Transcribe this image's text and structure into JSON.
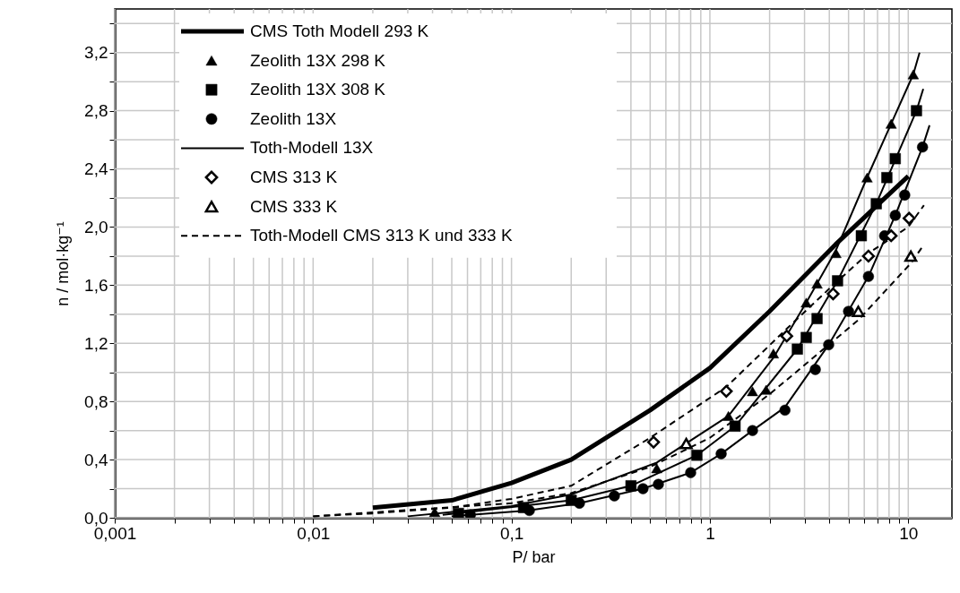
{
  "chart_data": {
    "type": "scatter",
    "xlabel": "P/ bar",
    "ylabel": "n / mol·kg⁻¹",
    "log": "x",
    "grid": true,
    "legend": "top left",
    "xlim": [
      0.001,
      16.6
    ],
    "ylim": [
      0,
      3.5
    ],
    "xticks": [
      {
        "value": 0.001,
        "label": "0,001"
      },
      {
        "value": 0.002,
        "label": null
      },
      {
        "value": 0.003,
        "label": null
      },
      {
        "value": 0.004,
        "label": null
      },
      {
        "value": 0.005,
        "label": null
      },
      {
        "value": 0.006,
        "label": null
      },
      {
        "value": 0.007,
        "label": null
      },
      {
        "value": 0.008,
        "label": null
      },
      {
        "value": 0.009,
        "label": null
      },
      {
        "value": 0.01,
        "label": "0,01"
      },
      {
        "value": 0.02,
        "label": null
      },
      {
        "value": 0.03,
        "label": null
      },
      {
        "value": 0.04,
        "label": null
      },
      {
        "value": 0.05,
        "label": null
      },
      {
        "value": 0.06,
        "label": null
      },
      {
        "value": 0.07,
        "label": null
      },
      {
        "value": 0.08,
        "label": null
      },
      {
        "value": 0.09,
        "label": null
      },
      {
        "value": 0.1,
        "label": "0,1"
      },
      {
        "value": 0.2,
        "label": null
      },
      {
        "value": 0.3,
        "label": null
      },
      {
        "value": 0.4,
        "label": null
      },
      {
        "value": 0.5,
        "label": null
      },
      {
        "value": 0.6,
        "label": null
      },
      {
        "value": 0.7,
        "label": null
      },
      {
        "value": 0.8,
        "label": null
      },
      {
        "value": 0.9,
        "label": null
      },
      1,
      {
        "value": 2,
        "label": null
      },
      {
        "value": 3,
        "label": null
      },
      {
        "value": 4,
        "label": null
      },
      {
        "value": 5,
        "label": null
      },
      {
        "value": 6,
        "label": null
      },
      {
        "value": 7,
        "label": null
      },
      {
        "value": 8,
        "label": null
      },
      {
        "value": 9,
        "label": null
      },
      10
    ],
    "yticks": [
      {
        "value": 0,
        "label": "0,0"
      },
      {
        "value": 0.2,
        "label": null
      },
      {
        "value": 0.4,
        "label": "0,4"
      },
      {
        "value": 0.6,
        "label": null
      },
      {
        "value": 0.8,
        "label": "0,8"
      },
      {
        "value": 1.0,
        "label": null
      },
      {
        "value": 1.2,
        "label": "1,2"
      },
      {
        "value": 1.4,
        "label": null
      },
      {
        "value": 1.6,
        "label": "1,6"
      },
      {
        "value": 1.8,
        "label": null
      },
      {
        "value": 2.0,
        "label": "2,0"
      },
      {
        "value": 2.2,
        "label": null
      },
      {
        "value": 2.4,
        "label": "2,4"
      },
      {
        "value": 2.6,
        "label": null
      },
      {
        "value": 2.8,
        "label": "2,8"
      },
      {
        "value": 3.0,
        "label": null
      },
      {
        "value": 3.2,
        "label": "3,2"
      },
      {
        "value": 3.4,
        "label": null
      }
    ],
    "series": [
      {
        "name": "CMS Toth Modell 293 K",
        "type": "line",
        "color": "#000000",
        "line_style": "solid",
        "x": [
          0.02,
          0.05,
          0.1,
          0.2,
          0.5,
          1,
          2,
          4.3,
          10
        ],
        "values": [
          0.07,
          0.12,
          0.24,
          0.4,
          0.74,
          1.03,
          1.42,
          1.88,
          2.35
        ]
      },
      {
        "name": "Zeolith 13X 298 K",
        "color": "#000000",
        "marker": "triangle",
        "x": [
          0.041,
          0.54,
          1.24,
          1.64,
          1.92,
          2.09,
          3.06,
          3.47,
          4.32,
          6.2,
          8.2,
          10.6
        ],
        "values": [
          0.04,
          0.34,
          0.7,
          0.87,
          0.88,
          1.13,
          1.48,
          1.61,
          1.82,
          2.34,
          2.71,
          3.05
        ]
      },
      {
        "name": "Zeolith 13X 308 K",
        "color": "#000000",
        "marker": "square",
        "x": [
          0.054,
          0.115,
          0.2,
          0.4,
          0.86,
          1.34,
          2.76,
          3.06,
          3.47,
          4.4,
          5.8,
          6.9,
          7.8,
          8.6,
          11.0
        ],
        "values": [
          0.03,
          0.07,
          0.12,
          0.22,
          0.43,
          0.63,
          1.16,
          1.24,
          1.37,
          1.63,
          1.94,
          2.16,
          2.34,
          2.47,
          2.8
        ]
      },
      {
        "name": "Zeolith 13X",
        "color": "#000000",
        "marker": "circle",
        "x": [
          0.062,
          0.123,
          0.22,
          0.33,
          0.46,
          0.55,
          0.8,
          1.14,
          1.64,
          2.39,
          3.4,
          3.97,
          5.0,
          6.3,
          7.6,
          8.6,
          9.6,
          11.8
        ],
        "values": [
          0.02,
          0.05,
          0.1,
          0.15,
          0.2,
          0.23,
          0.31,
          0.44,
          0.6,
          0.74,
          1.02,
          1.19,
          1.42,
          1.66,
          1.94,
          2.08,
          2.22,
          2.55
        ]
      },
      {
        "name": "Toth-Modell 13X",
        "type": "line",
        "color": "#000000",
        "line_style": "solid",
        "x": [
          0.03,
          0.1,
          0.2,
          0.54,
          1.24,
          2.09,
          3.06,
          4.32,
          6.2,
          8.2,
          10.6,
          11.4,
          null,
          0.045,
          0.2,
          0.4,
          0.86,
          1.34,
          2.76,
          4.4,
          6.9,
          11.0,
          11.9,
          null,
          0.05,
          0.12,
          0.22,
          0.46,
          0.8,
          1.14,
          1.64,
          2.39,
          3.97,
          6.3,
          8.6,
          11.8,
          12.8
        ],
        "values": [
          0.01,
          0.08,
          0.16,
          0.38,
          0.7,
          1.1,
          1.48,
          1.84,
          2.34,
          2.71,
          3.05,
          3.2,
          null,
          0.02,
          0.12,
          0.22,
          0.43,
          0.63,
          1.16,
          1.63,
          2.16,
          2.8,
          2.95,
          null,
          0.01,
          0.05,
          0.1,
          0.2,
          0.31,
          0.44,
          0.6,
          0.76,
          1.19,
          1.66,
          2.08,
          2.55,
          2.7
        ]
      },
      {
        "name": "CMS 313 K",
        "color": "#000000",
        "marker": "diamond",
        "x": [
          0.52,
          1.21,
          2.44,
          4.18,
          6.3,
          8.2,
          10.1
        ],
        "values": [
          0.52,
          0.87,
          1.25,
          1.54,
          1.8,
          1.94,
          2.06
        ]
      },
      {
        "name": "CMS 333 K",
        "color": "#000000",
        "marker": "triangle",
        "x": [
          0.76,
          5.6,
          10.3
        ],
        "values": [
          0.51,
          1.42,
          1.8
        ]
      },
      {
        "name": "Toth-Modell CMS 313 K und 333 K",
        "type": "line",
        "color": "#000000",
        "line_style": "dashed",
        "x": [
          0.01,
          0.02,
          0.05,
          0.1,
          0.2,
          0.5,
          1.21,
          2.44,
          4.18,
          6.3,
          10,
          12,
          null,
          0.01,
          0.1,
          0.2,
          0.5,
          0.76,
          1,
          2,
          5.6,
          10.3,
          12
        ],
        "values": [
          0.01,
          0.03,
          0.07,
          0.13,
          0.22,
          0.55,
          0.9,
          1.3,
          1.6,
          1.82,
          2.0,
          2.15,
          null,
          0.01,
          0.1,
          0.17,
          0.35,
          0.47,
          0.55,
          0.85,
          1.36,
          1.75,
          1.88
        ]
      }
    ]
  }
}
